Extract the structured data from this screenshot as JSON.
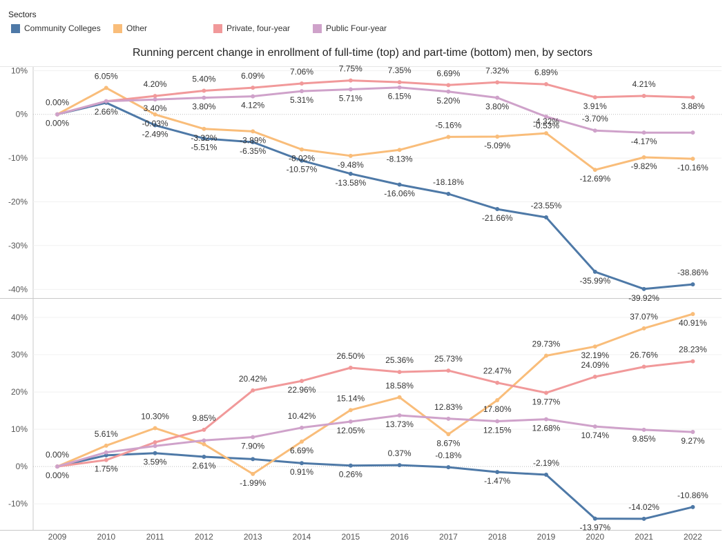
{
  "legend": {
    "title": "Sectors",
    "items": [
      {
        "label": "Community Colleges",
        "color": "#4e79a7"
      },
      {
        "label": "Other",
        "color": "#f9bd7a"
      },
      {
        "label": "Private, four-year",
        "color": "#f1999a"
      },
      {
        "label": "Public Four-year",
        "color": "#cfa2ca"
      }
    ]
  },
  "chart_data": {
    "type": "line",
    "title": "Running percent change in enrollment of full-time (top) and part-time (bottom)  men, by sectors",
    "x": [
      "2009",
      "2010",
      "2011",
      "2012",
      "2013",
      "2014",
      "2015",
      "2016",
      "2017",
      "2018",
      "2019",
      "2020",
      "2021",
      "2022"
    ],
    "panels": [
      {
        "name": "full-time",
        "ylim": [
          -42,
          11
        ],
        "yticks": [
          10,
          0,
          -10,
          -20,
          -30,
          -40
        ],
        "yticklabels": [
          "10%",
          "0%",
          "-10%",
          "-20%",
          "-30%",
          "-40%"
        ],
        "series": [
          {
            "name": "Community Colleges",
            "color": "#4e79a7",
            "values": [
              0.0,
              2.66,
              -2.49,
              -5.51,
              -6.35,
              -10.57,
              -13.58,
              -16.06,
              -18.18,
              -21.66,
              -23.55,
              -35.99,
              -39.92,
              -38.86
            ],
            "labels": [
              "0.00%",
              "2.66%",
              "-2.49%",
              "-5.51%",
              "-6.35%",
              "-10.57%",
              "-13.58%",
              "-16.06%",
              "-18.18%",
              "-21.66%",
              "-23.55%",
              "-35.99%",
              "-39.92%",
              "-38.86%"
            ]
          },
          {
            "name": "Other",
            "color": "#f9bd7a",
            "values": [
              0.0,
              6.05,
              -0.03,
              -3.32,
              -3.89,
              -8.02,
              -9.48,
              -8.13,
              -5.16,
              -5.09,
              -4.32,
              -12.69,
              -9.82,
              -10.16
            ],
            "labels": [
              "0.00%",
              "6.05%",
              "-0.03%",
              "-3.32%",
              "-3.89%",
              "-8.02%",
              "-9.48%",
              "-8.13%",
              "-5.16%",
              "-5.09%",
              "-4.32%",
              "-12.69%",
              "-9.82%",
              "-10.16%"
            ]
          },
          {
            "name": "Private, four-year",
            "color": "#f1999a",
            "values": [
              0.0,
              3.0,
              4.2,
              5.4,
              6.09,
              7.06,
              7.75,
              7.35,
              6.69,
              7.32,
              6.89,
              3.91,
              4.21,
              3.88
            ],
            "labels": [
              "",
              "",
              "4.20%",
              "5.40%",
              "6.09%",
              "7.06%",
              "7.75%",
              "7.35%",
              "6.69%",
              "7.32%",
              "6.89%",
              "3.91%",
              "4.21%",
              "3.88%"
            ]
          },
          {
            "name": "Public Four-year",
            "color": "#cfa2ca",
            "values": [
              0.0,
              3.0,
              3.4,
              3.8,
              4.12,
              5.31,
              5.71,
              6.15,
              5.2,
              3.8,
              -0.53,
              -3.7,
              -4.17,
              -4.17
            ],
            "labels": [
              "",
              "",
              "3.40%",
              "3.80%",
              "4.12%",
              "5.31%",
              "5.71%",
              "6.15%",
              "5.20%",
              "3.80%",
              "-0.53%",
              "-3.70%",
              "-4.17%",
              ""
            ]
          }
        ]
      },
      {
        "name": "part-time",
        "ylim": [
          -17,
          45
        ],
        "yticks": [
          40,
          30,
          20,
          10,
          0,
          -10
        ],
        "yticklabels": [
          "40%",
          "30%",
          "20%",
          "10%",
          "0%",
          "-10%"
        ],
        "series": [
          {
            "name": "Community Colleges",
            "color": "#4e79a7",
            "values": [
              0.0,
              3.0,
              3.59,
              2.61,
              1.99,
              0.91,
              0.26,
              0.37,
              -0.18,
              -1.47,
              -2.19,
              -13.97,
              -14.02,
              -10.86
            ],
            "labels": [
              "0.00%",
              "",
              "3.59%",
              "2.61%",
              "",
              "0.91%",
              "0.26%",
              "0.37%",
              "-0.18%",
              "-1.47%",
              "-2.19%",
              "-13.97%",
              "-14.02%",
              "-10.86%"
            ]
          },
          {
            "name": "Other",
            "color": "#f9bd7a",
            "values": [
              0.0,
              5.61,
              10.3,
              6.0,
              -1.99,
              6.69,
              15.14,
              18.58,
              8.67,
              17.8,
              29.73,
              32.19,
              37.07,
              40.91
            ],
            "labels": [
              "0.00%",
              "5.61%",
              "10.30%",
              "",
              "-1.99%",
              "6.69%",
              "15.14%",
              "18.58%",
              "8.67%",
              "17.80%",
              "29.73%",
              "32.19%",
              "37.07%",
              "40.91%"
            ]
          },
          {
            "name": "Private, four-year",
            "color": "#f1999a",
            "values": [
              0.0,
              1.75,
              6.5,
              9.85,
              20.42,
              22.96,
              26.5,
              25.36,
              25.73,
              22.47,
              19.77,
              24.09,
              26.76,
              28.23
            ],
            "labels": [
              "",
              "1.75%",
              "",
              "9.85%",
              "20.42%",
              "22.96%",
              "26.50%",
              "25.36%",
              "25.73%",
              "22.47%",
              "19.77%",
              "24.09%",
              "26.76%",
              "28.23%"
            ]
          },
          {
            "name": "Public Four-year",
            "color": "#cfa2ca",
            "values": [
              0.0,
              3.8,
              5.5,
              7.0,
              7.9,
              10.42,
              12.05,
              13.73,
              12.83,
              12.15,
              12.68,
              10.74,
              9.85,
              9.27
            ],
            "labels": [
              "",
              "",
              "",
              "",
              "7.90%",
              "10.42%",
              "12.05%",
              "13.73%",
              "12.83%",
              "12.15%",
              "12.68%",
              "10.74%",
              "9.85%",
              "9.27%"
            ]
          }
        ]
      }
    ]
  }
}
